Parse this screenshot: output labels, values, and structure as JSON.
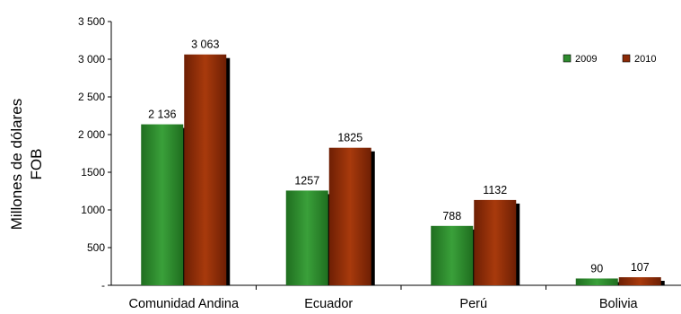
{
  "chart_data": {
    "type": "bar",
    "categories": [
      "Comunidad Andina",
      "Ecuador",
      "Perú",
      "Bolivia"
    ],
    "series": [
      {
        "name": "2009",
        "values": [
          2136,
          1257,
          788,
          90
        ],
        "labels": [
          "2 136",
          "1257",
          "788",
          "90"
        ],
        "color": "#2e8b2e"
      },
      {
        "name": "2010",
        "values": [
          3063,
          1825,
          1132,
          107
        ],
        "labels": [
          "3 063",
          "1825",
          "1132",
          "107"
        ],
        "color": "#8b2a06"
      }
    ],
    "ylabel_lines": [
      "Millones de dólares",
      "FOB"
    ],
    "ylim": [
      0,
      3500
    ],
    "yticks": [
      0,
      500,
      1000,
      1500,
      2000,
      2500,
      3000,
      3500
    ],
    "ytick_labels": [
      "-",
      "500",
      "1000",
      "1500",
      "2 000",
      "2 500",
      "3 000",
      "3 500"
    ],
    "legend_position": "top-right",
    "grid": false
  }
}
